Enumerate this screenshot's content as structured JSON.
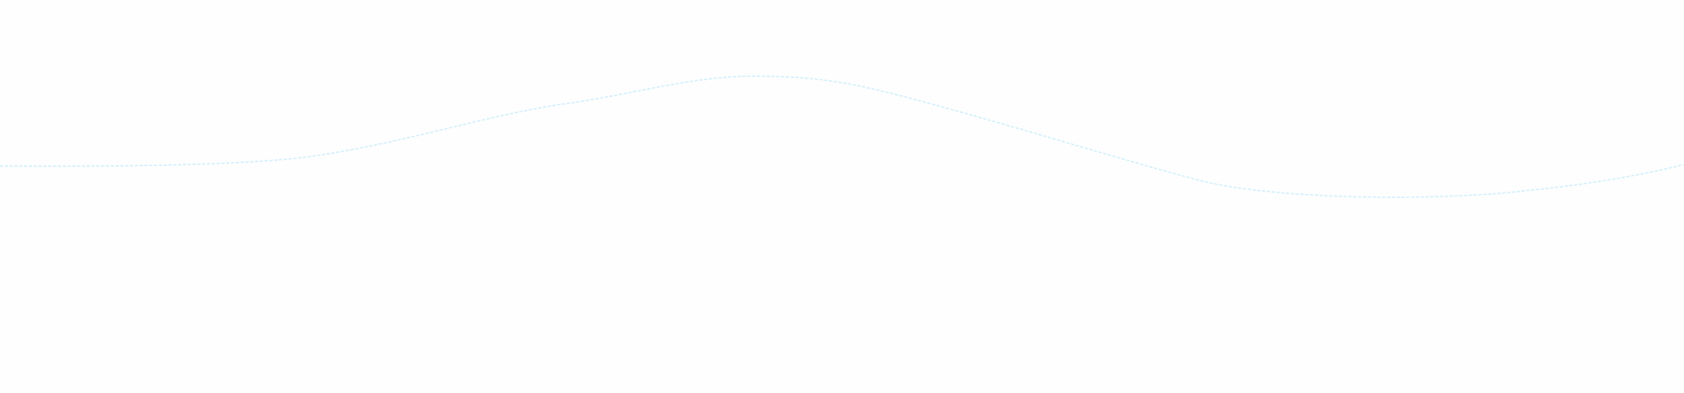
{
  "decoration": {
    "shape": "dashed-wave-line",
    "line_color": "#cdeefc",
    "background_color": "#fefefe"
  }
}
